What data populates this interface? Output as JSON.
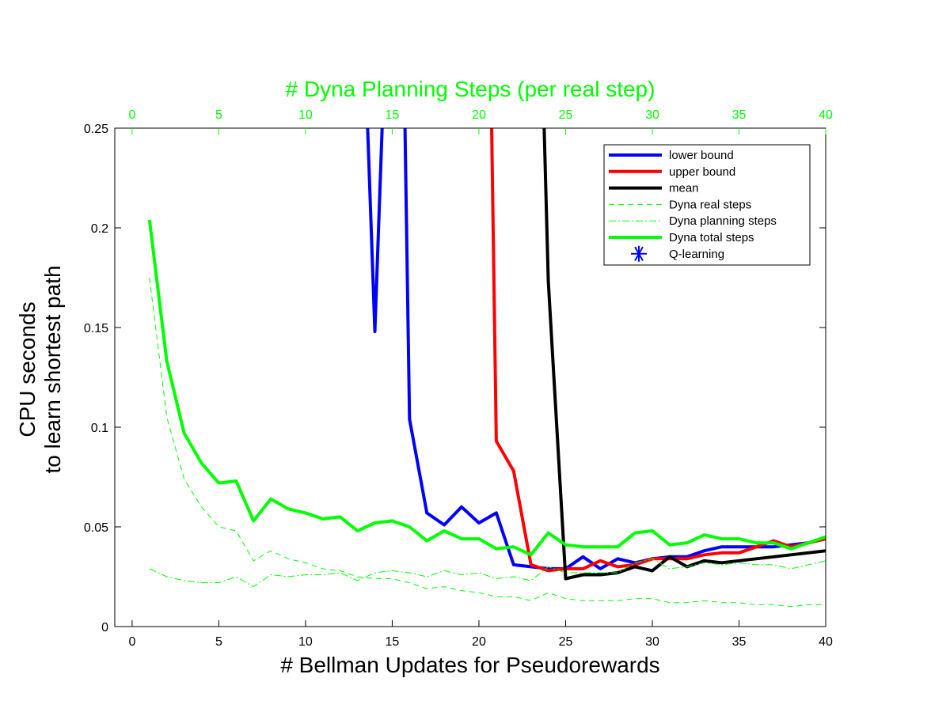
{
  "chart_data": {
    "type": "line",
    "xlabel": "# Bellman Updates for Pseudorewards",
    "ylabel_lines": [
      "CPU seconds",
      "to learn shortest path"
    ],
    "top_xlabel": "# Dyna Planning Steps (per real step)",
    "xlim": [
      -1,
      40
    ],
    "ylim": [
      0,
      0.25
    ],
    "xticks": [
      0,
      5,
      10,
      15,
      20,
      25,
      30,
      35,
      40
    ],
    "yticks": [
      0,
      0.05,
      0.1,
      0.15,
      0.2,
      0.25
    ],
    "ytick_labels": [
      "0",
      "0.05",
      "0.1",
      "0.15",
      "0.2",
      "0.25"
    ],
    "top_xticks": [
      0,
      5,
      10,
      15,
      20,
      25,
      30,
      35,
      40
    ],
    "colors": {
      "blue": "#0000ff",
      "red": "#ff0000",
      "black": "#000000",
      "green": "#00ff00"
    },
    "legend_position": "top-right",
    "series": [
      {
        "name": "lower bound",
        "color": "#0000ff",
        "width": 4,
        "dash": "",
        "x": [
          13.5,
          14,
          14.5,
          15.7,
          16,
          17,
          18,
          19,
          20,
          21,
          22,
          23,
          24,
          25,
          26,
          27,
          28,
          29,
          30,
          31,
          32,
          33,
          34,
          35,
          36,
          37,
          38,
          39,
          40
        ],
        "y": [
          0.27,
          0.148,
          0.27,
          0.27,
          0.104,
          0.057,
          0.051,
          0.06,
          0.052,
          0.057,
          0.031,
          0.03,
          0.029,
          0.029,
          0.035,
          0.029,
          0.034,
          0.032,
          0.034,
          0.035,
          0.035,
          0.038,
          0.04,
          0.04,
          0.04,
          0.04,
          0.041,
          0.042,
          0.044
        ]
      },
      {
        "name": "upper bound",
        "color": "#ff0000",
        "width": 4,
        "dash": "",
        "x": [
          20.7,
          21,
          22,
          23,
          24,
          25,
          26,
          27,
          28,
          29,
          30,
          31,
          32,
          33,
          34,
          35,
          36,
          37,
          38,
          39,
          40
        ],
        "y": [
          0.27,
          0.093,
          0.078,
          0.031,
          0.028,
          0.029,
          0.029,
          0.033,
          0.03,
          0.031,
          0.034,
          0.034,
          0.034,
          0.036,
          0.037,
          0.037,
          0.04,
          0.043,
          0.04,
          0.042,
          0.044
        ]
      },
      {
        "name": "mean",
        "color": "#000000",
        "width": 4,
        "dash": "",
        "x": [
          23.7,
          24,
          25,
          26,
          27,
          28,
          29,
          30,
          31,
          32,
          33,
          34,
          35,
          36,
          37,
          38,
          39,
          40
        ],
        "y": [
          0.27,
          0.173,
          0.024,
          0.026,
          0.026,
          0.027,
          0.03,
          0.028,
          0.035,
          0.03,
          0.033,
          0.032,
          0.033,
          0.034,
          0.035,
          0.036,
          0.037,
          0.038
        ]
      },
      {
        "name": "Dyna real steps",
        "color": "#00ff00",
        "width": 1,
        "dash": "7,5",
        "x": [
          1,
          2,
          3,
          4,
          5,
          6,
          7,
          8,
          9,
          10,
          11,
          12,
          13,
          14,
          15,
          16,
          17,
          18,
          19,
          20,
          21,
          22,
          23,
          24,
          25,
          26,
          27,
          28,
          29,
          30,
          31,
          32,
          33,
          34,
          35,
          36,
          37,
          38,
          39,
          40
        ],
        "y": [
          0.175,
          0.105,
          0.074,
          0.06,
          0.05,
          0.048,
          0.033,
          0.038,
          0.034,
          0.032,
          0.029,
          0.028,
          0.025,
          0.024,
          0.024,
          0.022,
          0.019,
          0.02,
          0.018,
          0.017,
          0.015,
          0.015,
          0.013,
          0.017,
          0.014,
          0.013,
          0.013,
          0.013,
          0.014,
          0.014,
          0.012,
          0.012,
          0.013,
          0.012,
          0.012,
          0.011,
          0.011,
          0.01,
          0.011,
          0.011
        ]
      },
      {
        "name": "Dyna planning steps",
        "color": "#00ff00",
        "width": 1,
        "dash": "9,3,2,3",
        "x": [
          1,
          2,
          3,
          4,
          5,
          6,
          7,
          8,
          9,
          10,
          11,
          12,
          13,
          14,
          15,
          16,
          17,
          18,
          19,
          20,
          21,
          22,
          23,
          24,
          25,
          26,
          27,
          28,
          29,
          30,
          31,
          32,
          33,
          34,
          35,
          36,
          37,
          38,
          39,
          40
        ],
        "y": [
          0.029,
          0.025,
          0.023,
          0.022,
          0.022,
          0.025,
          0.02,
          0.026,
          0.025,
          0.026,
          0.026,
          0.027,
          0.023,
          0.027,
          0.028,
          0.027,
          0.025,
          0.028,
          0.026,
          0.027,
          0.024,
          0.025,
          0.023,
          0.03,
          0.027,
          0.027,
          0.027,
          0.027,
          0.032,
          0.034,
          0.029,
          0.03,
          0.032,
          0.031,
          0.032,
          0.031,
          0.031,
          0.029,
          0.031,
          0.033
        ]
      },
      {
        "name": "Dyna total steps",
        "color": "#00ff00",
        "width": 4,
        "dash": "",
        "x": [
          1,
          2,
          3,
          4,
          5,
          6,
          7,
          8,
          9,
          10,
          11,
          12,
          13,
          14,
          15,
          16,
          17,
          18,
          19,
          20,
          21,
          22,
          23,
          24,
          25,
          26,
          27,
          28,
          29,
          30,
          31,
          32,
          33,
          34,
          35,
          36,
          37,
          38,
          39,
          40
        ],
        "y": [
          0.204,
          0.133,
          0.097,
          0.082,
          0.072,
          0.073,
          0.053,
          0.064,
          0.059,
          0.057,
          0.054,
          0.055,
          0.048,
          0.052,
          0.053,
          0.05,
          0.043,
          0.048,
          0.044,
          0.044,
          0.039,
          0.04,
          0.036,
          0.047,
          0.041,
          0.04,
          0.04,
          0.04,
          0.047,
          0.048,
          0.041,
          0.042,
          0.046,
          0.044,
          0.044,
          0.042,
          0.042,
          0.039,
          0.042,
          0.045
        ]
      },
      {
        "name": "Q-learning",
        "color": "#0000ff",
        "width": 2,
        "dash": "",
        "marker": "asterisk",
        "x": [],
        "y": []
      }
    ]
  }
}
